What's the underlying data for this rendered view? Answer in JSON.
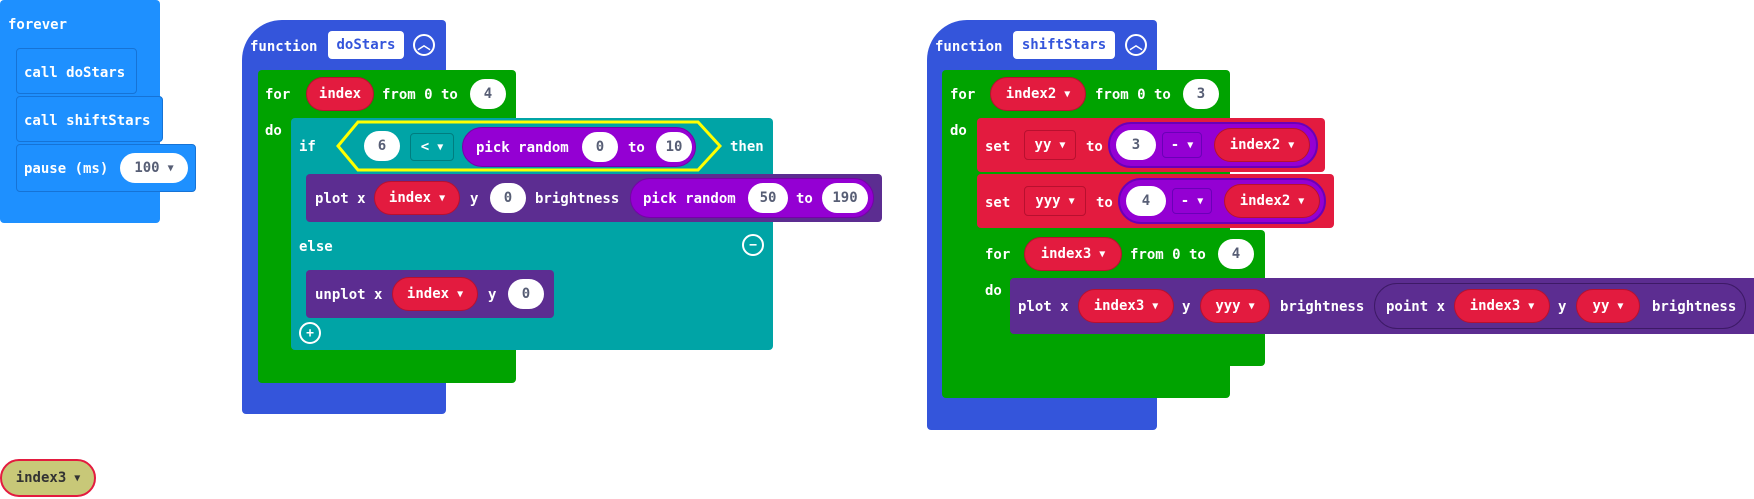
{
  "forever": {
    "label": "forever",
    "call1": "call doStars",
    "call2": "call shiftStars",
    "pause_label": "pause (ms)",
    "pause_value": "100"
  },
  "func1": {
    "keyword": "function",
    "name": "doStars",
    "for": "for",
    "var": "index",
    "from": "from 0 to",
    "to_value": "4",
    "do": "do",
    "if": "if",
    "cmp_left": "6",
    "cmp_op": "<",
    "pick_random": "pick random",
    "rand_min": "0",
    "rand_to": "to",
    "rand_max": "10",
    "then": "then",
    "plot": "plot x",
    "plot_x_var": "index",
    "plot_y": "y",
    "plot_y_val": "0",
    "brightness": "brightness",
    "pr2": "pick random",
    "pr2_min": "50",
    "pr2_to": "to",
    "pr2_max": "190",
    "else": "else",
    "unplot": "unplot x",
    "unplot_x_var": "index",
    "unplot_y": "y",
    "unplot_y_val": "0"
  },
  "func2": {
    "keyword": "function",
    "name": "shiftStars",
    "for": "for",
    "var": "index2",
    "from": "from 0 to",
    "to_value": "3",
    "do": "do",
    "set1": "set",
    "set1_var": "yy",
    "set1_to": "to",
    "set1_a": "3",
    "set1_op": "-",
    "set1_b": "index2",
    "set2": "set",
    "set2_var": "yyy",
    "set2_to": "to",
    "set2_a": "4",
    "set2_op": "-",
    "set2_b": "index2",
    "for2": "for",
    "var2": "index3",
    "from2": "from 0 to",
    "to2_value": "4",
    "do2": "do",
    "plot": "plot x",
    "plot_x": "index3",
    "plot_y": "y",
    "plot_y_var": "yyy",
    "brightness": "brightness",
    "point": "point x",
    "point_x": "index3",
    "point_y": "y",
    "point_y_var": "yy",
    "brightness2": "brightness"
  },
  "floating": {
    "var": "index3"
  },
  "colors": {
    "basic": "#1e90ff",
    "functions": "#3455db",
    "loops": "#00a300",
    "logic": "#00a4a6",
    "led": "#5c2d91",
    "variables": "#e31b3f",
    "math": "#9400d3"
  }
}
